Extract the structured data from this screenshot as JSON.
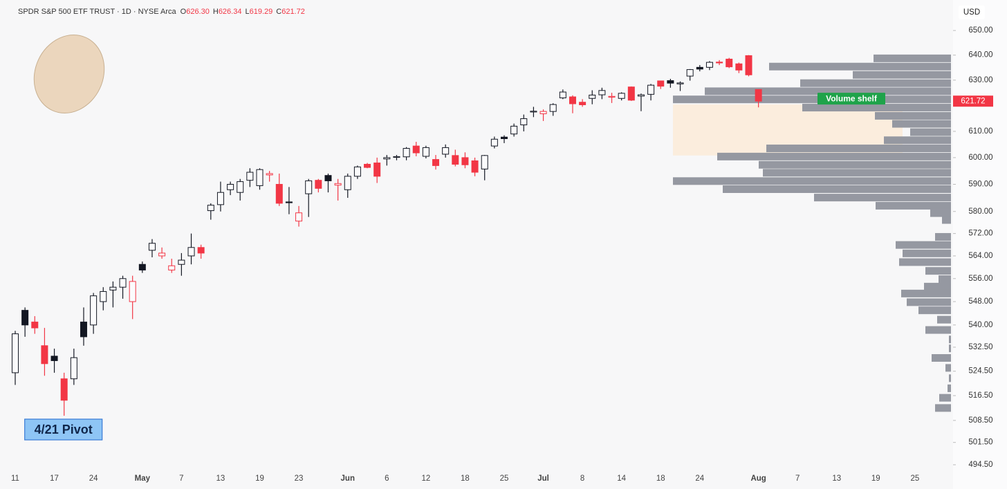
{
  "chart_data": {
    "type": "candlestick",
    "title": "SPDR S&P 500 ETF TRUST · 1D · NYSE Arca",
    "ohlc_header": [
      {
        "key": "O",
        "value": 626.3,
        "label": "626.30"
      },
      {
        "key": "H",
        "value": 626.34,
        "label": "626.34"
      },
      {
        "key": "L",
        "value": 619.29,
        "label": "619.29"
      },
      {
        "key": "C",
        "value": 621.72,
        "label": "621.72"
      }
    ],
    "currency": "USD",
    "last_price": {
      "value": 621.72,
      "label": "621.72"
    },
    "categories": [
      "11",
      null,
      null,
      null,
      "17",
      null,
      null,
      null,
      "24",
      null,
      null,
      null,
      null,
      "May",
      null,
      null,
      null,
      "7",
      null,
      null,
      null,
      "13",
      null,
      null,
      null,
      "19",
      null,
      null,
      null,
      "23",
      null,
      null,
      null,
      null,
      "Jun",
      null,
      null,
      null,
      "6",
      null,
      null,
      null,
      "12",
      null,
      null,
      null,
      "18",
      null,
      null,
      null,
      "25",
      null,
      null,
      null,
      "Jul",
      null,
      null,
      null,
      "8",
      null,
      null,
      null,
      "14",
      null,
      null,
      null,
      "18",
      null,
      null,
      null,
      "24",
      null,
      null,
      null,
      null,
      null,
      "Aug",
      null,
      null,
      null,
      "7",
      null,
      null,
      null,
      "13",
      null,
      null,
      null,
      "19",
      null,
      null,
      null,
      "25",
      null,
      null,
      null
    ],
    "open": [
      524,
      545,
      541,
      533,
      529.5,
      522,
      522,
      541,
      540,
      548,
      552,
      553,
      548,
      561,
      566,
      564,
      559,
      561,
      564,
      567,
      580.3,
      582.5,
      588,
      587,
      591.5,
      589.5,
      593.5,
      590,
      583.5,
      576.5,
      586.5,
      591.5,
      593.3,
      589.7,
      588,
      593,
      597.5,
      598,
      599.5,
      600.2,
      600.3,
      604.4,
      600.5,
      599.3,
      601.3,
      600.8,
      600,
      598.8,
      595.7,
      604.4,
      607.8,
      609,
      612.5,
      617.5,
      616.8,
      617.7,
      623,
      623.4,
      621.3,
      622.8,
      624.2,
      623.3,
      622.8,
      627.3,
      623.7,
      624.4,
      629.7,
      629.8,
      628.5,
      631.6,
      635.1,
      635.1,
      637.2,
      638.4,
      636.5,
      639.8,
      626.3,
      null,
      null,
      null,
      null,
      null,
      null,
      null,
      null,
      null,
      null,
      null,
      null,
      null,
      null,
      null,
      null,
      null,
      null,
      null
    ],
    "high": [
      538,
      546,
      543,
      539,
      532,
      524,
      532,
      546,
      551,
      553,
      555,
      557,
      557,
      562,
      570,
      567,
      563,
      565,
      572,
      568,
      583,
      591,
      591,
      592,
      596,
      596,
      595,
      594,
      589,
      582,
      592,
      592,
      594,
      592,
      594,
      597,
      598,
      600,
      601,
      601,
      604,
      606,
      604.5,
      601,
      605,
      603,
      602,
      600,
      601,
      608,
      608.5,
      613,
      616.5,
      619.5,
      618.5,
      620.9,
      626.3,
      624,
      622.5,
      626,
      627,
      625,
      625.2,
      627.5,
      624.7,
      628.5,
      629.7,
      630.5,
      629.5,
      634.4,
      636,
      637.6,
      638,
      638.9,
      637,
      640,
      626.34,
      null,
      null,
      null,
      null,
      null,
      null,
      null,
      null,
      null,
      null,
      null,
      null,
      null,
      null,
      null,
      null,
      null,
      null,
      null
    ],
    "low": [
      520,
      536,
      537,
      523,
      524,
      510,
      520,
      533,
      537,
      545,
      546,
      549,
      542,
      558,
      563.5,
      563,
      558,
      557,
      561,
      563,
      577,
      580,
      586,
      584,
      589,
      588,
      591,
      582,
      579,
      574.5,
      578,
      587,
      587,
      584,
      585,
      592,
      596,
      590.5,
      597,
      599,
      599,
      600.5,
      599.7,
      595.5,
      600,
      596.7,
      596,
      593,
      591.5,
      603.5,
      605.5,
      608,
      610,
      615.5,
      614,
      616,
      622.5,
      617,
      619.5,
      620.5,
      622.5,
      621,
      622,
      621.8,
      617.8,
      622,
      626.5,
      627,
      625.7,
      629.8,
      633.5,
      634,
      636,
      634.8,
      632.8,
      631.5,
      619.29,
      null,
      null,
      null,
      null,
      null,
      null,
      null,
      null,
      null,
      null,
      null,
      null,
      null,
      null,
      null,
      null,
      null,
      null,
      null
    ],
    "close": [
      537,
      540,
      539,
      527,
      528,
      515,
      529,
      536,
      550,
      551.5,
      553,
      556,
      555,
      559,
      568.5,
      565,
      560.5,
      562.5,
      567,
      565,
      582.3,
      587,
      590,
      591,
      594.5,
      595.5,
      594,
      583,
      583.2,
      579.5,
      591.3,
      588.5,
      591.3,
      590.3,
      593,
      596.5,
      596.3,
      593,
      600,
      600.4,
      603.5,
      601.8,
      603.8,
      597,
      603.8,
      597.5,
      597.3,
      594.5,
      600.8,
      607,
      607.2,
      612,
      614.9,
      617.8,
      617.7,
      620.4,
      625.3,
      620.7,
      620.3,
      624.1,
      625.9,
      623.6,
      624.8,
      622.1,
      624.2,
      628,
      627.6,
      628.8,
      628.9,
      634.2,
      634.4,
      637.1,
      636.9,
      635.3,
      634,
      632.1,
      621.72,
      null,
      null,
      null,
      null,
      null,
      null,
      null,
      null,
      null,
      null,
      null,
      null,
      null,
      null,
      null,
      null,
      null,
      null,
      null
    ],
    "up_color": "#131722",
    "down_color": "#f23645",
    "log_scale": true,
    "grid": false,
    "ylim": [
      491.7,
      662.6
    ],
    "yticks": [
      {
        "value": 650,
        "label": "650.00"
      },
      {
        "value": 640,
        "label": "640.00"
      },
      {
        "value": 630,
        "label": "630.00"
      },
      {
        "value": 610,
        "label": "610.00"
      },
      {
        "value": 600,
        "label": "600.00"
      },
      {
        "value": 590,
        "label": "590.00"
      },
      {
        "value": 580,
        "label": "580.00"
      },
      {
        "value": 572,
        "label": "572.00"
      },
      {
        "value": 564,
        "label": "564.00"
      },
      {
        "value": 556,
        "label": "556.00"
      },
      {
        "value": 548,
        "label": "548.00"
      },
      {
        "value": 540,
        "label": "540.00"
      },
      {
        "value": 532.5,
        "label": "532.50"
      },
      {
        "value": 524.5,
        "label": "524.50"
      },
      {
        "value": 516.5,
        "label": "516.50"
      },
      {
        "value": 508.5,
        "label": "508.50"
      },
      {
        "value": 501.5,
        "label": "501.50"
      },
      {
        "value": 494.5,
        "label": "494.50"
      }
    ],
    "volume_profile": {
      "color": "#9598a1",
      "levels": [
        638.7,
        635.4,
        632.1,
        628.8,
        625.6,
        622.4,
        619.2,
        616.0,
        612.9,
        609.7,
        606.6,
        603.5,
        600.4,
        597.3,
        594.3,
        591.2,
        588.2,
        585.1,
        582.1,
        579.4,
        576.9,
        570.8,
        567.9,
        564.9,
        561.8,
        558.7,
        555.8,
        553.2,
        550.8,
        547.8,
        545.0,
        541.8,
        538.3,
        535.1,
        532.1,
        528.9,
        525.6,
        522.2,
        518.9,
        515.8,
        512.5
      ],
      "values": [
        112,
        263,
        142,
        218,
        356,
        402,
        215,
        110,
        85,
        59,
        97,
        267,
        338,
        278,
        272,
        402,
        330,
        198,
        109,
        30,
        13,
        23,
        80,
        70,
        75,
        37,
        18,
        39,
        72,
        64,
        47,
        20,
        37,
        3,
        3,
        28,
        8,
        3,
        5,
        17,
        23
      ]
    },
    "shelf": {
      "label": "Volume shelf",
      "range": [
        600.8,
        620.4
      ],
      "color": "#fcebd8",
      "label_color": "#1fa34a"
    },
    "annotations": [
      {
        "text": "4/21 Pivot",
        "category": 5,
        "fill": "#8ec5f5",
        "stroke": "#3a7bd5"
      }
    ]
  }
}
